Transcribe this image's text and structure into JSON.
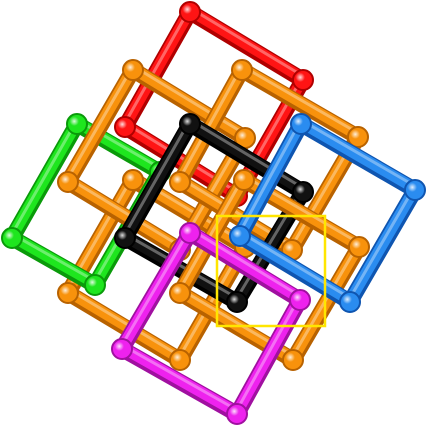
{
  "canvas": {
    "background": "#ffffff"
  },
  "frames": [
    {
      "name": "red",
      "color": "#ff1414",
      "shade": "#b00000"
    },
    {
      "name": "green",
      "color": "#1ee61e",
      "shade": "#0a9a0a"
    },
    {
      "name": "blue",
      "color": "#2a8cf0",
      "shade": "#0f55b0"
    },
    {
      "name": "magenta",
      "color": "#ee22ee",
      "shade": "#a010a0"
    },
    {
      "name": "black",
      "color": "#111111",
      "shade": "#000000"
    },
    {
      "name": "orange-left",
      "color": "#f8920c",
      "shade": "#b86200"
    },
    {
      "name": "orange-top",
      "color": "#f8920c",
      "shade": "#b86200"
    },
    {
      "name": "orange-right",
      "color": "#f8920c",
      "shade": "#b86200"
    },
    {
      "name": "orange-bottom",
      "color": "#f8920c",
      "shade": "#b86200"
    }
  ],
  "highlight": {
    "color": "#ffe600"
  }
}
